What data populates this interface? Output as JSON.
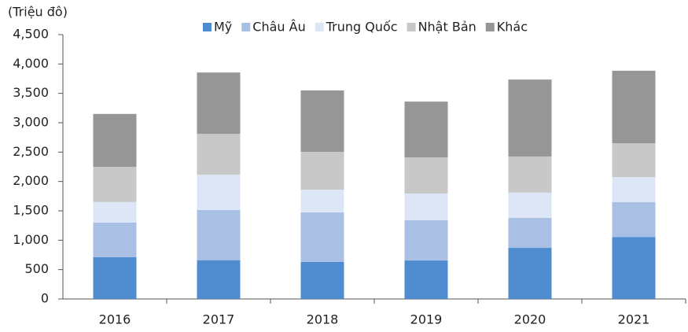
{
  "chart_data": {
    "type": "stacked_bar",
    "y_label": "(Triệu đô)",
    "categories": [
      "2016",
      "2017",
      "2018",
      "2019",
      "2020",
      "2021"
    ],
    "series": [
      {
        "name": "Mỹ",
        "color": "#4e8ccf",
        "values": [
          710,
          660,
          630,
          655,
          870,
          1055
        ]
      },
      {
        "name": "Châu Âu",
        "color": "#a9c0e4",
        "values": [
          590,
          855,
          845,
          685,
          510,
          595
        ]
      },
      {
        "name": "Trung Quốc",
        "color": "#dde6f6",
        "values": [
          350,
          600,
          385,
          455,
          430,
          425
        ]
      },
      {
        "name": "Nhật Bản",
        "color": "#c8c8c8",
        "values": [
          600,
          695,
          645,
          615,
          615,
          575
        ]
      },
      {
        "name": "Khác",
        "color": "#969696",
        "values": [
          900,
          1045,
          1045,
          950,
          1310,
          1235
        ]
      }
    ],
    "ylim": [
      0,
      4500
    ],
    "yticks": [
      0,
      500,
      {
        "value": 1000,
        "label": "1,000"
      },
      {
        "value": 1500,
        "label": "1,500"
      },
      {
        "value": 2000,
        "label": "2,000"
      },
      {
        "value": 2500,
        "label": "2,500"
      },
      {
        "value": 3000,
        "label": "3,000"
      },
      {
        "value": 3500,
        "label": "3,500"
      },
      {
        "value": 4000,
        "label": "4,000"
      },
      {
        "value": 4500,
        "label": "4,500"
      }
    ],
    "legend": "top"
  }
}
